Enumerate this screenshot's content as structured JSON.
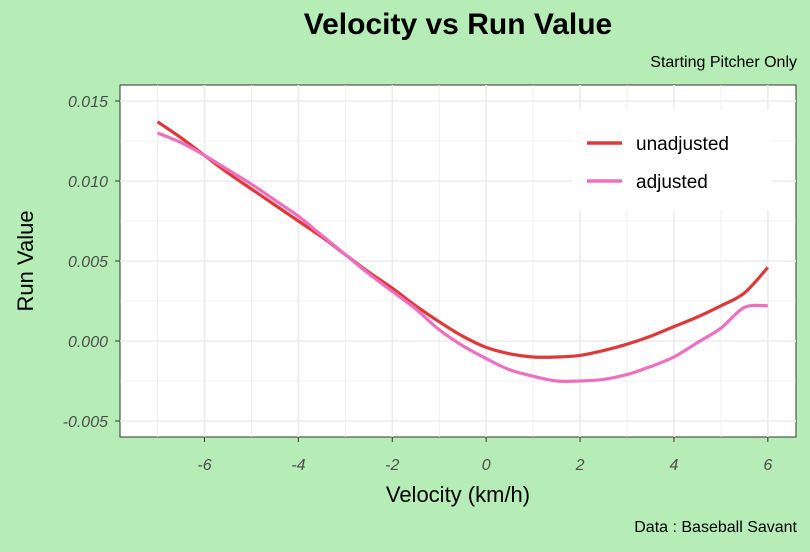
{
  "title": "Velocity vs Run Value",
  "subtitle": "Starting Pitcher Only",
  "caption": "Data : Baseball Savant",
  "colors": {
    "background": "#b6edb6",
    "panel": "#ffffff",
    "grid": "#ebebeb",
    "unadjusted": "#dc3a3a",
    "adjusted": "#ee6fbe"
  },
  "chart_data": {
    "type": "line",
    "title": "Velocity vs Run Value",
    "subtitle": "Starting Pitcher Only",
    "caption": "Data : Baseball Savant",
    "xlabel": "Velocity (km/h)",
    "ylabel": "Run Value",
    "xlim": [
      -7.8,
      6.6
    ],
    "ylim": [
      -0.006,
      0.016
    ],
    "xticks": [
      -6,
      -4,
      -2,
      0,
      2,
      4,
      6
    ],
    "xtick_labels": [
      "-6",
      "-4",
      "-2",
      "0",
      "2",
      "4",
      "6"
    ],
    "yticks": [
      -0.005,
      0.0,
      0.005,
      0.01,
      0.015
    ],
    "ytick_labels": [
      "-0.005",
      "0.000",
      "0.005",
      "0.010",
      "0.015"
    ],
    "grid": true,
    "legend_position": "top-right",
    "series": [
      {
        "name": "unadjusted",
        "color": "#dc3a3a",
        "x": [
          -7,
          -6.5,
          -6,
          -5.5,
          -5,
          -4.5,
          -4,
          -3.5,
          -3,
          -2.5,
          -2,
          -1.5,
          -1,
          -0.5,
          0,
          0.5,
          1,
          1.5,
          2,
          2.5,
          3,
          3.5,
          4,
          4.5,
          5,
          5.5,
          6
        ],
        "y": [
          0.0137,
          0.0127,
          0.0116,
          0.0105,
          0.0095,
          0.0085,
          0.0075,
          0.0065,
          0.0054,
          0.0043,
          0.0033,
          0.0022,
          0.0012,
          0.0003,
          -0.0004,
          -0.0008,
          -0.001,
          -0.001,
          -0.0009,
          -0.0006,
          -0.0002,
          0.0003,
          0.0009,
          0.0015,
          0.0022,
          0.003,
          0.0046
        ]
      },
      {
        "name": "adjusted",
        "color": "#ee6fbe",
        "x": [
          -7,
          -6.5,
          -6,
          -5.5,
          -5,
          -4.5,
          -4,
          -3.5,
          -3,
          -2.5,
          -2,
          -1.5,
          -1,
          -0.5,
          0,
          0.5,
          1,
          1.5,
          2,
          2.5,
          3,
          3.5,
          4,
          4.5,
          5,
          5.5,
          6
        ],
        "y": [
          0.013,
          0.0124,
          0.0116,
          0.0107,
          0.0098,
          0.0088,
          0.0078,
          0.0066,
          0.0054,
          0.0042,
          0.0031,
          0.002,
          0.0007,
          -0.0003,
          -0.0011,
          -0.0018,
          -0.0022,
          -0.0025,
          -0.0025,
          -0.0024,
          -0.0021,
          -0.0016,
          -0.001,
          -0.0001,
          0.0008,
          0.0021,
          0.0022
        ]
      }
    ]
  }
}
